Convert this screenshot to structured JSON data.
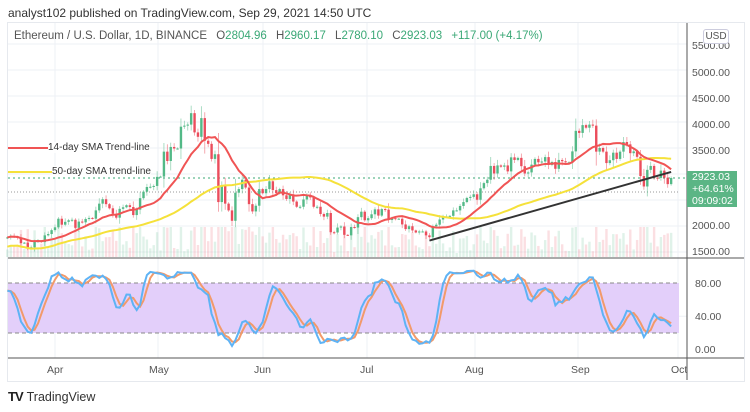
{
  "header": {
    "published": "analyst102 published on TradingView.com, Sep 29, 2021 14:50 UTC"
  },
  "legend": {
    "symbol": "Ethereum / U.S. Dollar, 1D, BINANCE",
    "open_label": "O",
    "open": "2804.96",
    "high_label": "H",
    "high": "2960.17",
    "low_label": "L",
    "low": "2780.10",
    "close_label": "C",
    "close": "2923.03",
    "change": "+117.00 (+4.17%)"
  },
  "price_scale": {
    "currency": "USD",
    "ticks": [
      "5500.00",
      "5000.00",
      "4500.00",
      "4000.00",
      "3500.00",
      "2000.00",
      "1500.00"
    ]
  },
  "price_box": {
    "price": "2923.03",
    "change_pct": "+64.61%",
    "countdown": "09:09:02"
  },
  "annotations": {
    "sma14_label": "14-day SMA Trend-line",
    "sma50_label": "50-day SMA trend-line"
  },
  "stoch_scale": {
    "ticks": [
      "80.00",
      "40.00",
      "0.00"
    ]
  },
  "time_axis": [
    "Apr",
    "May",
    "Jun",
    "Jul",
    "Aug",
    "Sep",
    "Oct"
  ],
  "footer": {
    "brand": "TradingView"
  },
  "colors": {
    "up": "#53b987",
    "down": "#eb4d5c",
    "sma14": "#f05454",
    "sma50": "#f5e13a",
    "trendline": "#333333",
    "stoch_k": "#5eb3f5",
    "stoch_d": "#f29a6a",
    "stoch_band": "#e3cffa",
    "price_box": "#5bb585"
  },
  "chart_data": {
    "type": "candlestick",
    "title": "Ethereum / U.S. Dollar, 1D, BINANCE",
    "start_date": "2021-03-18",
    "end_date": "2021-09-29",
    "ylim": [
      1400,
      5700
    ],
    "indicators": [
      "SMA 14",
      "SMA 50",
      "Stochastic RSI"
    ],
    "stoch_levels": [
      20,
      80
    ],
    "trendline": {
      "from": [
        "2021-07-20",
        1720
      ],
      "to": [
        "2021-09-29",
        3040
      ]
    },
    "closes": [
      1780,
      1810,
      1790,
      1780,
      1670,
      1680,
      1590,
      1590,
      1700,
      1715,
      1690,
      1820,
      1845,
      1920,
      1975,
      2140,
      2025,
      2080,
      2110,
      2120,
      1965,
      2085,
      2070,
      2135,
      2155,
      2140,
      2300,
      2430,
      2515,
      2420,
      2340,
      2235,
      2160,
      2330,
      2360,
      2400,
      2365,
      2210,
      2315,
      2535,
      2660,
      2750,
      2755,
      2770,
      2945,
      2950,
      3430,
      3250,
      3520,
      3490,
      3490,
      3910,
      3930,
      3950,
      4170,
      3800,
      3715,
      4075,
      3640,
      3580,
      3290,
      3380,
      2460,
      2775,
      2430,
      2300,
      2100,
      2640,
      2710,
      2890,
      2740,
      2420,
      2280,
      2390,
      2710,
      2630,
      2710,
      2860,
      2690,
      2630,
      2710,
      2590,
      2520,
      2610,
      2470,
      2370,
      2370,
      2510,
      2590,
      2550,
      2370,
      2370,
      2230,
      2180,
      2250,
      1880,
      1875,
      1970,
      1990,
      1830,
      1820,
      1980,
      1970,
      2170,
      2275,
      2110,
      2150,
      2225,
      2320,
      2200,
      2325,
      2315,
      2115,
      2150,
      2140,
      2140,
      2030,
      1940,
      1995,
      1915,
      1875,
      1895,
      1895,
      1820,
      1785,
      1995,
      2025,
      2125,
      2185,
      2185,
      2195,
      2300,
      2300,
      2385,
      2460,
      2540,
      2560,
      2610,
      2505,
      2725,
      2825,
      2890,
      3155,
      3010,
      3165,
      3140,
      3165,
      3050,
      3320,
      3270,
      3310,
      3150,
      3010,
      3030,
      3180,
      3290,
      3225,
      3240,
      3325,
      3175,
      3230,
      3100,
      3270,
      3245,
      3225,
      3225,
      3435,
      3830,
      3790,
      3940,
      3890,
      3950,
      3930,
      3430,
      3500,
      3430,
      3210,
      3265,
      3410,
      3290,
      3430,
      3615,
      3570,
      3400,
      3435,
      3330,
      2960,
      2760,
      3080,
      3155,
      2930,
      2925,
      3065,
      2930,
      2805,
      2923
    ]
  }
}
